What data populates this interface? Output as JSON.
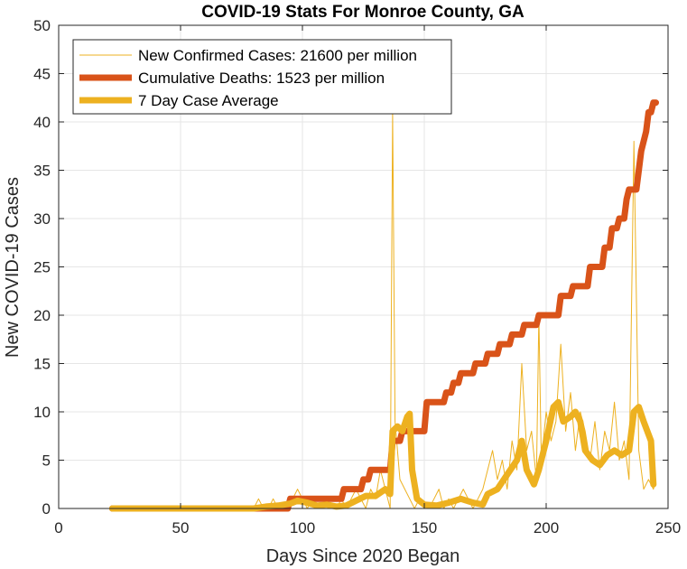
{
  "chart_data": {
    "type": "line",
    "title": "COVID-19 Stats For Monroe County, GA",
    "xlabel": "Days Since 2020 Began",
    "ylabel": "New COVID-19 Cases",
    "xlim": [
      0,
      250
    ],
    "ylim": [
      0,
      50
    ],
    "xticks": [
      0,
      50,
      100,
      150,
      200,
      250
    ],
    "yticks": [
      0,
      5,
      10,
      15,
      20,
      25,
      30,
      35,
      40,
      45,
      50
    ],
    "grid": true,
    "legend_position": "top-left",
    "series": [
      {
        "name": "New Confirmed Cases: 21600 per million",
        "color": "#EDB120",
        "style": "thin",
        "points": [
          [
            22,
            0
          ],
          [
            80,
            0
          ],
          [
            82,
            1
          ],
          [
            84,
            0
          ],
          [
            86,
            0
          ],
          [
            88,
            1
          ],
          [
            90,
            0
          ],
          [
            92,
            0
          ],
          [
            94,
            0
          ],
          [
            96,
            1
          ],
          [
            98,
            2
          ],
          [
            100,
            1
          ],
          [
            102,
            0
          ],
          [
            104,
            1
          ],
          [
            106,
            0
          ],
          [
            108,
            0
          ],
          [
            110,
            1
          ],
          [
            112,
            0
          ],
          [
            114,
            0
          ],
          [
            116,
            1
          ],
          [
            118,
            0
          ],
          [
            120,
            1
          ],
          [
            122,
            2
          ],
          [
            124,
            1
          ],
          [
            126,
            0
          ],
          [
            128,
            2
          ],
          [
            130,
            1
          ],
          [
            132,
            4
          ],
          [
            134,
            2
          ],
          [
            136,
            0
          ],
          [
            137,
            41
          ],
          [
            138,
            9
          ],
          [
            140,
            3
          ],
          [
            142,
            2
          ],
          [
            144,
            1
          ],
          [
            146,
            0
          ],
          [
            148,
            1
          ],
          [
            150,
            0
          ],
          [
            152,
            0
          ],
          [
            154,
            1
          ],
          [
            156,
            2
          ],
          [
            158,
            0
          ],
          [
            160,
            1
          ],
          [
            162,
            0
          ],
          [
            164,
            1
          ],
          [
            166,
            2
          ],
          [
            168,
            1
          ],
          [
            170,
            0
          ],
          [
            172,
            1
          ],
          [
            174,
            2
          ],
          [
            176,
            4
          ],
          [
            178,
            6
          ],
          [
            180,
            3
          ],
          [
            182,
            5
          ],
          [
            184,
            2
          ],
          [
            186,
            7
          ],
          [
            188,
            4
          ],
          [
            190,
            15
          ],
          [
            192,
            6
          ],
          [
            194,
            8
          ],
          [
            196,
            3
          ],
          [
            197,
            20
          ],
          [
            198,
            5
          ],
          [
            200,
            10
          ],
          [
            202,
            7
          ],
          [
            204,
            9
          ],
          [
            206,
            17
          ],
          [
            208,
            8
          ],
          [
            210,
            12
          ],
          [
            212,
            6
          ],
          [
            214,
            10
          ],
          [
            216,
            8
          ],
          [
            218,
            5
          ],
          [
            220,
            9
          ],
          [
            222,
            4
          ],
          [
            224,
            8
          ],
          [
            226,
            6
          ],
          [
            228,
            11
          ],
          [
            230,
            5
          ],
          [
            232,
            7
          ],
          [
            234,
            3
          ],
          [
            236,
            38
          ],
          [
            238,
            6
          ],
          [
            240,
            2
          ],
          [
            242,
            3
          ],
          [
            244,
            2
          ],
          [
            245,
            3
          ]
        ]
      },
      {
        "name": "Cumulative Deaths: 1523 per million",
        "color": "#D95319",
        "style": "thick",
        "points": [
          [
            22,
            0
          ],
          [
            94,
            0
          ],
          [
            95,
            1
          ],
          [
            116,
            1
          ],
          [
            117,
            2
          ],
          [
            124,
            2
          ],
          [
            125,
            3
          ],
          [
            127,
            3
          ],
          [
            128,
            4
          ],
          [
            136,
            4
          ],
          [
            137,
            7
          ],
          [
            140,
            7
          ],
          [
            141,
            8
          ],
          [
            150,
            8
          ],
          [
            151,
            11
          ],
          [
            158,
            11
          ],
          [
            159,
            12
          ],
          [
            161,
            12
          ],
          [
            162,
            13
          ],
          [
            164,
            13
          ],
          [
            165,
            14
          ],
          [
            170,
            14
          ],
          [
            171,
            15
          ],
          [
            175,
            15
          ],
          [
            176,
            16
          ],
          [
            180,
            16
          ],
          [
            181,
            17
          ],
          [
            185,
            17
          ],
          [
            186,
            18
          ],
          [
            190,
            18
          ],
          [
            191,
            19
          ],
          [
            196,
            19
          ],
          [
            197,
            20
          ],
          [
            205,
            20
          ],
          [
            206,
            22
          ],
          [
            210,
            22
          ],
          [
            211,
            23
          ],
          [
            217,
            23
          ],
          [
            218,
            25
          ],
          [
            223,
            25
          ],
          [
            224,
            27
          ],
          [
            226,
            27
          ],
          [
            227,
            29
          ],
          [
            229,
            29
          ],
          [
            230,
            30
          ],
          [
            232,
            30
          ],
          [
            233,
            32
          ],
          [
            234,
            33
          ],
          [
            237,
            33
          ],
          [
            238,
            35
          ],
          [
            239,
            37
          ],
          [
            241,
            39
          ],
          [
            242,
            41
          ],
          [
            243,
            41
          ],
          [
            244,
            42
          ],
          [
            245,
            42
          ]
        ]
      },
      {
        "name": "7 Day Case Average",
        "color": "#EDB120",
        "style": "thick",
        "points": [
          [
            22,
            0
          ],
          [
            80,
            0
          ],
          [
            85,
            0.2
          ],
          [
            90,
            0.3
          ],
          [
            95,
            0.5
          ],
          [
            98,
            0.8
          ],
          [
            102,
            0.6
          ],
          [
            106,
            0.3
          ],
          [
            110,
            0.4
          ],
          [
            114,
            0.2
          ],
          [
            118,
            0.3
          ],
          [
            122,
            0.8
          ],
          [
            126,
            1.3
          ],
          [
            130,
            1.3
          ],
          [
            134,
            2
          ],
          [
            136,
            1.5
          ],
          [
            137,
            8
          ],
          [
            139,
            8.5
          ],
          [
            141,
            8
          ],
          [
            143,
            9.5
          ],
          [
            144,
            9.8
          ],
          [
            145,
            4
          ],
          [
            147,
            1
          ],
          [
            150,
            0.4
          ],
          [
            155,
            0.3
          ],
          [
            160,
            0.6
          ],
          [
            165,
            1
          ],
          [
            170,
            0.6
          ],
          [
            174,
            0.4
          ],
          [
            176,
            1.5
          ],
          [
            180,
            2
          ],
          [
            184,
            3.5
          ],
          [
            188,
            5
          ],
          [
            190,
            7
          ],
          [
            192,
            4
          ],
          [
            195,
            2.5
          ],
          [
            197,
            4
          ],
          [
            200,
            7
          ],
          [
            203,
            10.5
          ],
          [
            205,
            11
          ],
          [
            207,
            9
          ],
          [
            210,
            9.5
          ],
          [
            212,
            10
          ],
          [
            214,
            9
          ],
          [
            216,
            6
          ],
          [
            219,
            5
          ],
          [
            222,
            4.5
          ],
          [
            225,
            5.5
          ],
          [
            228,
            6
          ],
          [
            231,
            5.5
          ],
          [
            234,
            6
          ],
          [
            236,
            10
          ],
          [
            238,
            10.5
          ],
          [
            240,
            9
          ],
          [
            243,
            7
          ],
          [
            244,
            2.5
          ]
        ]
      }
    ]
  }
}
